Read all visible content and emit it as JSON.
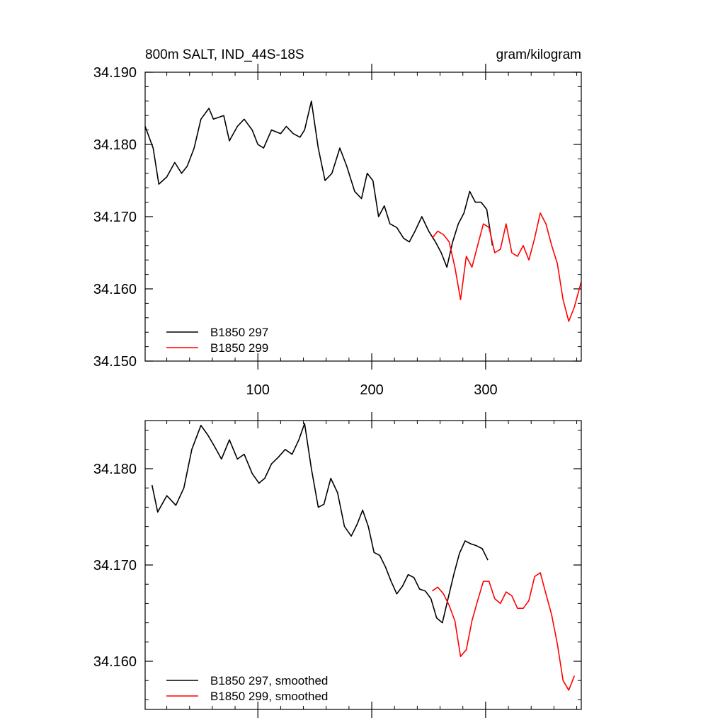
{
  "chart_data": [
    {
      "type": "line",
      "title": "800m SALT, IND_44S-18S",
      "units": "gram/kilogram",
      "xlim": [
        1,
        384
      ],
      "ylim": [
        34.15,
        34.19
      ],
      "xticks": [
        100,
        200,
        300
      ],
      "xtick_labels": [
        "100",
        "200",
        "300"
      ],
      "yticks": [
        34.15,
        34.16,
        34.17,
        34.18,
        34.19
      ],
      "ytick_labels": [
        "34.150",
        "34.160",
        "34.170",
        "34.180",
        "34.190"
      ],
      "legend_position": "bottom-left",
      "series": [
        {
          "name": "B1850 297",
          "color": "#000000",
          "x": [
            1,
            8,
            13,
            20,
            27,
            33,
            38,
            44,
            50,
            57,
            61,
            70,
            75,
            82,
            88,
            95,
            100,
            105,
            112,
            120,
            125,
            131,
            137,
            141,
            147,
            153,
            159,
            165,
            172,
            178,
            185,
            191,
            196,
            201,
            206,
            211,
            216,
            222,
            228,
            233,
            238,
            244,
            250,
            256,
            261,
            266,
            271,
            276,
            281,
            286,
            291,
            296,
            301,
            306
          ],
          "y": [
            34.1825,
            34.1795,
            34.1745,
            34.1755,
            34.1775,
            34.176,
            34.177,
            34.1795,
            34.1835,
            34.185,
            34.1835,
            34.184,
            34.1805,
            34.1825,
            34.1835,
            34.182,
            34.18,
            34.1795,
            34.182,
            34.1815,
            34.1825,
            34.1815,
            34.181,
            34.182,
            34.186,
            34.1795,
            34.175,
            34.176,
            34.1795,
            34.177,
            34.1735,
            34.1725,
            34.176,
            34.175,
            34.17,
            34.1715,
            34.169,
            34.1685,
            34.167,
            34.1665,
            34.168,
            34.17,
            34.168,
            34.1665,
            34.165,
            34.163,
            34.1665,
            34.169,
            34.1705,
            34.1735,
            34.172,
            34.172,
            34.171,
            34.166
          ]
        },
        {
          "name": "B1850 299",
          "color": "#ff0000",
          "x": [
            253,
            258,
            263,
            268,
            273,
            278,
            283,
            288,
            293,
            298,
            303,
            308,
            313,
            318,
            323,
            328,
            333,
            338,
            343,
            348,
            353,
            358,
            363,
            368,
            373,
            378,
            384
          ],
          "y": [
            34.167,
            34.168,
            34.1675,
            34.1665,
            34.163,
            34.1585,
            34.1645,
            34.163,
            34.166,
            34.169,
            34.1685,
            34.165,
            34.1655,
            34.169,
            34.165,
            34.1645,
            34.166,
            34.164,
            34.167,
            34.1705,
            34.169,
            34.166,
            34.1635,
            34.1585,
            34.1555,
            34.1575,
            34.161
          ]
        }
      ]
    },
    {
      "type": "line",
      "title": "",
      "xlim": [
        1,
        384
      ],
      "ylim": [
        34.155,
        34.185
      ],
      "yticks": [
        34.16,
        34.17,
        34.18
      ],
      "ytick_labels": [
        "34.160",
        "34.170",
        "34.180"
      ],
      "legend_position": "bottom-left",
      "series": [
        {
          "name": "B1850 297, smoothed",
          "color": "#000000",
          "x": [
            7,
            12,
            20,
            28,
            35,
            42,
            50,
            56,
            62,
            68,
            75,
            82,
            88,
            95,
            101,
            106,
            112,
            118,
            124,
            130,
            136,
            141,
            147,
            153,
            158,
            164,
            170,
            176,
            182,
            187,
            192,
            197,
            202,
            207,
            212,
            217,
            222,
            227,
            232,
            237,
            242,
            247,
            252,
            257,
            262,
            267,
            272,
            277,
            282,
            287,
            292,
            297,
            302
          ],
          "y": [
            34.1783,
            34.1755,
            34.1772,
            34.1762,
            34.178,
            34.182,
            34.1845,
            34.1835,
            34.1823,
            34.181,
            34.183,
            34.181,
            34.1815,
            34.1795,
            34.1785,
            34.179,
            34.1805,
            34.1812,
            34.182,
            34.1815,
            34.183,
            34.1847,
            34.18,
            34.176,
            34.1763,
            34.179,
            34.1775,
            34.174,
            34.173,
            34.1742,
            34.1757,
            34.174,
            34.1713,
            34.171,
            34.1698,
            34.1683,
            34.167,
            34.1678,
            34.169,
            34.1687,
            34.1675,
            34.1673,
            34.1665,
            34.1645,
            34.164,
            34.1665,
            34.169,
            34.1712,
            34.1725,
            34.1722,
            34.172,
            34.1717,
            34.1705
          ]
        },
        {
          "name": "B1850 299, smoothed",
          "color": "#ff0000",
          "x": [
            253,
            258,
            263,
            268,
            273,
            278,
            283,
            288,
            293,
            298,
            303,
            308,
            313,
            318,
            323,
            328,
            333,
            338,
            343,
            348,
            353,
            358,
            363,
            368,
            373,
            378
          ],
          "y": [
            34.1673,
            34.1677,
            34.167,
            34.1658,
            34.1642,
            34.1605,
            34.1612,
            34.1642,
            34.1663,
            34.1683,
            34.1683,
            34.1665,
            34.166,
            34.1672,
            34.1668,
            34.1655,
            34.1655,
            34.1663,
            34.1688,
            34.1692,
            34.167,
            34.1648,
            34.1618,
            34.158,
            34.157,
            34.1585
          ]
        }
      ]
    }
  ]
}
